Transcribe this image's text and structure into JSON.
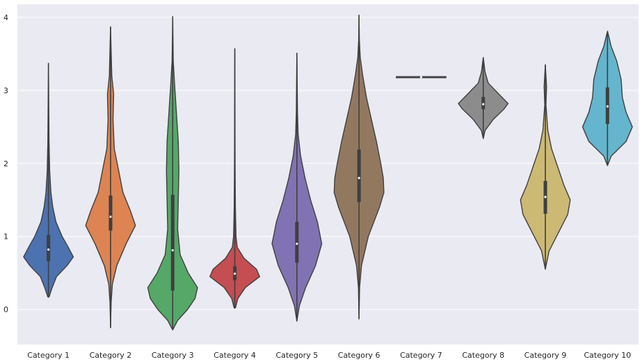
{
  "chart_data": {
    "type": "violin",
    "title": "",
    "xlabel": "",
    "ylabel": "",
    "ylim": [
      -0.48,
      4.18
    ],
    "yticks": [
      0,
      1,
      2,
      3,
      4
    ],
    "grid": true,
    "background_color": "#eaeaf2",
    "categories": [
      "Category 1",
      "Category 2",
      "Category 3",
      "Category 4",
      "Category 5",
      "Category 6",
      "Category 7",
      "Category 8",
      "Category 9",
      "Category 10"
    ],
    "colors": [
      "#4c72b0",
      "#dd8452",
      "#55a868",
      "#c44e52",
      "#8172b3",
      "#937860",
      "#da8bc3",
      "#8c8c8c",
      "#ccb974",
      "#64b5cd"
    ],
    "series": [
      {
        "min": 0.17,
        "max": 3.37,
        "q1": 0.66,
        "median": 0.82,
        "q3": 1.02,
        "profile": [
          [
            0.17,
            0.01
          ],
          [
            0.3,
            0.06
          ],
          [
            0.45,
            0.13
          ],
          [
            0.6,
            0.3
          ],
          [
            0.72,
            0.4
          ],
          [
            0.85,
            0.32
          ],
          [
            1.0,
            0.22
          ],
          [
            1.2,
            0.12
          ],
          [
            1.4,
            0.07
          ],
          [
            1.6,
            0.04
          ],
          [
            1.9,
            0.02
          ],
          [
            2.3,
            0.01
          ],
          [
            3.37,
            0.0
          ]
        ]
      },
      {
        "min": -0.25,
        "max": 3.87,
        "q1": 1.08,
        "median": 1.27,
        "q3": 1.56,
        "profile": [
          [
            -0.25,
            0.0
          ],
          [
            0.1,
            0.01
          ],
          [
            0.35,
            0.03
          ],
          [
            0.6,
            0.1
          ],
          [
            0.9,
            0.25
          ],
          [
            1.15,
            0.4
          ],
          [
            1.35,
            0.32
          ],
          [
            1.6,
            0.2
          ],
          [
            1.9,
            0.13
          ],
          [
            2.2,
            0.06
          ],
          [
            2.6,
            0.04
          ],
          [
            2.95,
            0.05
          ],
          [
            3.2,
            0.02
          ],
          [
            3.87,
            0.0
          ]
        ]
      },
      {
        "min": -0.28,
        "max": 4.01,
        "q1": 0.26,
        "median": 0.81,
        "q3": 1.57,
        "profile": [
          [
            -0.28,
            0.0
          ],
          [
            -0.15,
            0.08
          ],
          [
            0.0,
            0.24
          ],
          [
            0.15,
            0.36
          ],
          [
            0.3,
            0.4
          ],
          [
            0.5,
            0.25
          ],
          [
            0.75,
            0.12
          ],
          [
            1.1,
            0.08
          ],
          [
            1.5,
            0.09
          ],
          [
            1.9,
            0.1
          ],
          [
            2.3,
            0.09
          ],
          [
            2.7,
            0.06
          ],
          [
            3.1,
            0.03
          ],
          [
            3.4,
            0.01
          ],
          [
            4.01,
            0.0
          ]
        ]
      },
      {
        "min": 0.02,
        "max": 3.57,
        "q1": 0.4,
        "median": 0.49,
        "q3": 0.59,
        "profile": [
          [
            0.02,
            0.01
          ],
          [
            0.15,
            0.05
          ],
          [
            0.3,
            0.17
          ],
          [
            0.45,
            0.4
          ],
          [
            0.55,
            0.35
          ],
          [
            0.7,
            0.15
          ],
          [
            0.85,
            0.04
          ],
          [
            1.0,
            0.02
          ],
          [
            1.4,
            0.01
          ],
          [
            2.0,
            0.005
          ],
          [
            3.57,
            0.0
          ]
        ]
      },
      {
        "min": -0.16,
        "max": 3.51,
        "q1": 0.64,
        "median": 0.9,
        "q3": 1.2,
        "profile": [
          [
            -0.16,
            0.0
          ],
          [
            0.05,
            0.04
          ],
          [
            0.3,
            0.14
          ],
          [
            0.6,
            0.3
          ],
          [
            0.9,
            0.4
          ],
          [
            1.2,
            0.33
          ],
          [
            1.5,
            0.22
          ],
          [
            1.8,
            0.13
          ],
          [
            2.1,
            0.06
          ],
          [
            2.4,
            0.02
          ],
          [
            2.7,
            0.01
          ],
          [
            3.51,
            0.0
          ]
        ]
      },
      {
        "min": -0.13,
        "max": 4.03,
        "q1": 1.47,
        "median": 1.8,
        "q3": 2.19,
        "profile": [
          [
            -0.13,
            0.0
          ],
          [
            0.3,
            0.01
          ],
          [
            0.6,
            0.04
          ],
          [
            1.0,
            0.15
          ],
          [
            1.4,
            0.33
          ],
          [
            1.6,
            0.4
          ],
          [
            1.8,
            0.39
          ],
          [
            2.0,
            0.35
          ],
          [
            2.3,
            0.28
          ],
          [
            2.6,
            0.2
          ],
          [
            2.9,
            0.12
          ],
          [
            3.2,
            0.06
          ],
          [
            3.45,
            0.02
          ],
          [
            3.7,
            0.005
          ],
          [
            4.03,
            0.0
          ]
        ]
      },
      {
        "min": 3.17,
        "max": 3.19,
        "q1": 3.17,
        "median": 3.18,
        "q3": 3.19,
        "profile": [
          [
            3.17,
            0.4
          ],
          [
            3.175,
            0.4
          ],
          [
            3.18,
            0.4
          ],
          [
            3.185,
            0.4
          ],
          [
            3.19,
            0.4
          ]
        ]
      },
      {
        "min": 2.34,
        "max": 3.45,
        "q1": 2.74,
        "median": 2.81,
        "q3": 2.91,
        "profile": [
          [
            2.34,
            0.0
          ],
          [
            2.45,
            0.03
          ],
          [
            2.6,
            0.16
          ],
          [
            2.75,
            0.34
          ],
          [
            2.82,
            0.4
          ],
          [
            2.95,
            0.25
          ],
          [
            3.1,
            0.08
          ],
          [
            3.25,
            0.03
          ],
          [
            3.45,
            0.0
          ]
        ]
      },
      {
        "min": 0.55,
        "max": 3.35,
        "q1": 1.31,
        "median": 1.54,
        "q3": 1.76,
        "profile": [
          [
            0.55,
            0.0
          ],
          [
            0.8,
            0.06
          ],
          [
            1.0,
            0.18
          ],
          [
            1.3,
            0.36
          ],
          [
            1.5,
            0.4
          ],
          [
            1.7,
            0.3
          ],
          [
            1.95,
            0.2
          ],
          [
            2.2,
            0.1
          ],
          [
            2.45,
            0.04
          ],
          [
            2.8,
            0.01
          ],
          [
            3.05,
            0.02
          ],
          [
            3.35,
            0.0
          ]
        ]
      },
      {
        "min": 1.97,
        "max": 3.81,
        "q1": 2.54,
        "median": 2.78,
        "q3": 3.04,
        "profile": [
          [
            1.97,
            0.0
          ],
          [
            2.1,
            0.06
          ],
          [
            2.3,
            0.3
          ],
          [
            2.5,
            0.4
          ],
          [
            2.7,
            0.3
          ],
          [
            2.9,
            0.24
          ],
          [
            3.15,
            0.22
          ],
          [
            3.4,
            0.15
          ],
          [
            3.6,
            0.06
          ],
          [
            3.81,
            0.0
          ]
        ]
      }
    ]
  }
}
